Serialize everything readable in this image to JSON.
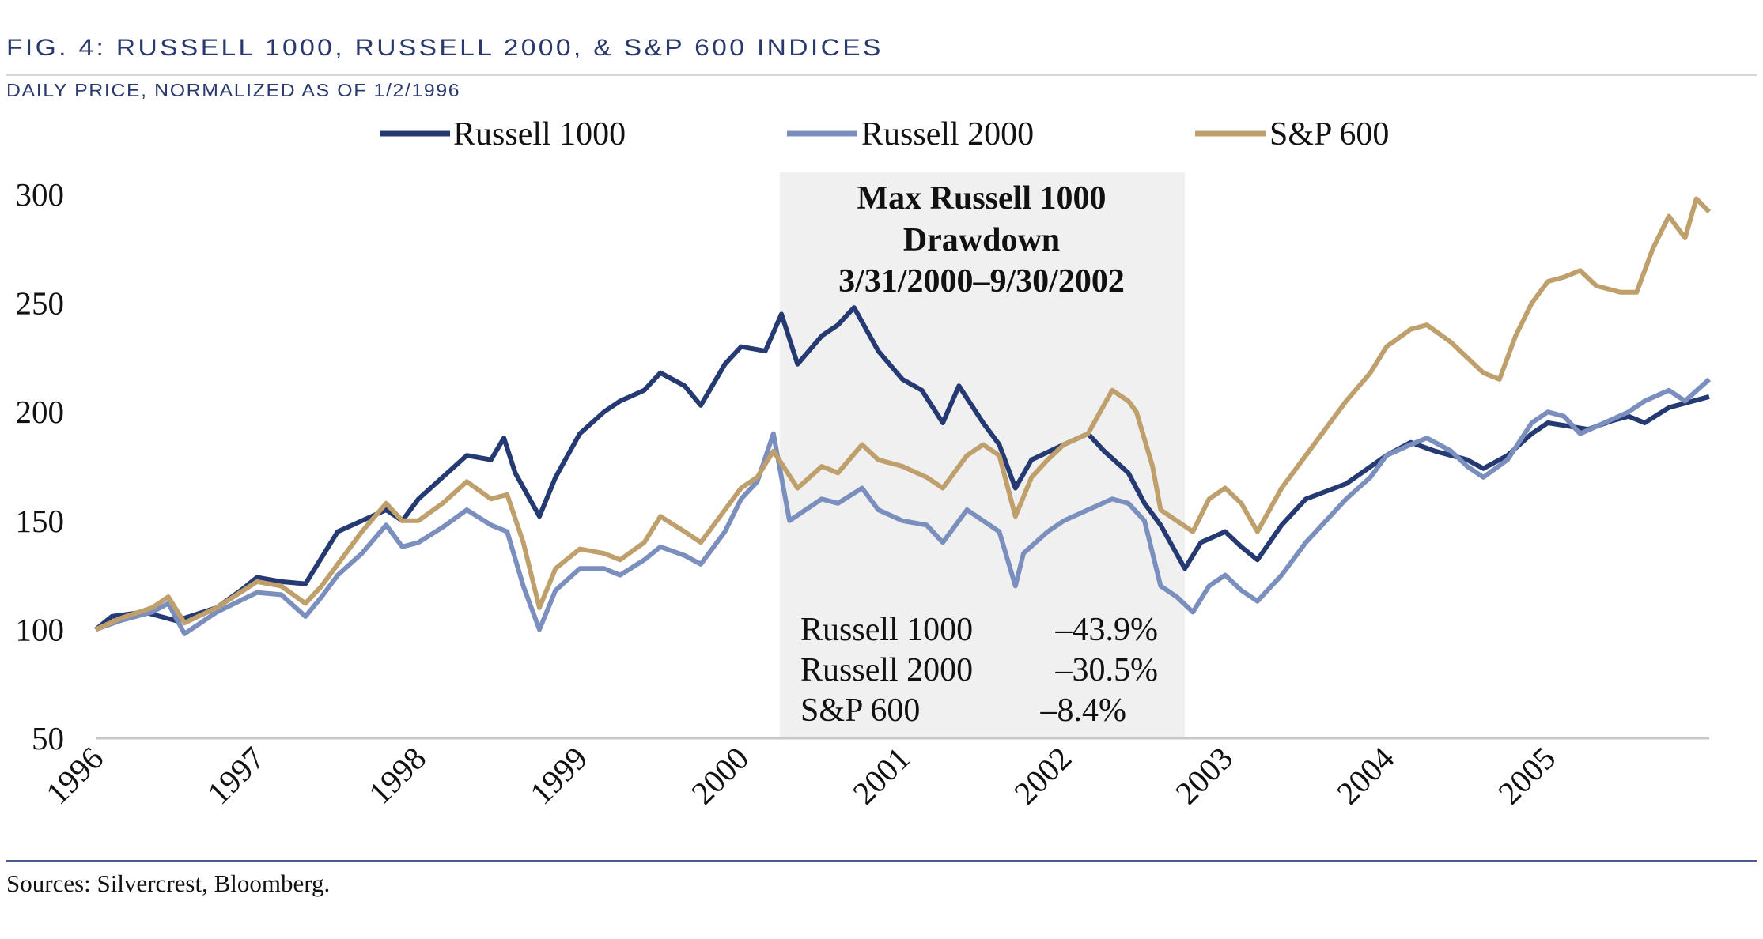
{
  "header": {
    "title": "FIG. 4: RUSSELL 1000, RUSSELL 2000, & S&P 600 INDICES",
    "subtitle": "DAILY PRICE, NORMALIZED AS OF 1/2/1996"
  },
  "footer": {
    "source": "Sources: Silvercrest, Bloomberg."
  },
  "chart_data": {
    "type": "line",
    "title": "FIG. 4: RUSSELL 1000, RUSSELL 2000, & S&P 600 INDICES",
    "subtitle": "DAILY PRICE, NORMALIZED AS OF 1/2/1996",
    "xlim": [
      1996,
      2006
    ],
    "ylim": [
      50,
      300
    ],
    "y_ticks": [
      "300",
      "250",
      "200",
      "150",
      "100",
      "50"
    ],
    "x_ticks": [
      "1996",
      "1997",
      "1998",
      "1999",
      "2000",
      "2001",
      "2002",
      "2003",
      "2004",
      "2005"
    ],
    "grid": false,
    "legend_position": "top",
    "series": [
      {
        "name": "Russell 1000",
        "color": "#253a73",
        "points": [
          [
            1996.0,
            100
          ],
          [
            1996.1,
            106
          ],
          [
            1996.3,
            108
          ],
          [
            1996.5,
            104
          ],
          [
            1996.75,
            110
          ],
          [
            1996.9,
            118
          ],
          [
            1997.0,
            124
          ],
          [
            1997.15,
            122
          ],
          [
            1997.3,
            121
          ],
          [
            1997.4,
            133
          ],
          [
            1997.5,
            145
          ],
          [
            1997.65,
            150
          ],
          [
            1997.8,
            155
          ],
          [
            1997.9,
            150
          ],
          [
            1998.0,
            160
          ],
          [
            1998.15,
            170
          ],
          [
            1998.3,
            180
          ],
          [
            1998.45,
            178
          ],
          [
            1998.53,
            188
          ],
          [
            1998.6,
            172
          ],
          [
            1998.75,
            152
          ],
          [
            1998.85,
            170
          ],
          [
            1999.0,
            190
          ],
          [
            1999.15,
            200
          ],
          [
            1999.25,
            205
          ],
          [
            1999.4,
            210
          ],
          [
            1999.5,
            218
          ],
          [
            1999.65,
            212
          ],
          [
            1999.75,
            203
          ],
          [
            1999.9,
            222
          ],
          [
            2000.0,
            230
          ],
          [
            2000.15,
            228
          ],
          [
            2000.25,
            245
          ],
          [
            2000.35,
            222
          ],
          [
            2000.5,
            235
          ],
          [
            2000.6,
            240
          ],
          [
            2000.7,
            248
          ],
          [
            2000.85,
            228
          ],
          [
            2001.0,
            215
          ],
          [
            2001.12,
            210
          ],
          [
            2001.25,
            195
          ],
          [
            2001.35,
            212
          ],
          [
            2001.5,
            195
          ],
          [
            2001.6,
            185
          ],
          [
            2001.7,
            165
          ],
          [
            2001.8,
            178
          ],
          [
            2002.0,
            185
          ],
          [
            2002.15,
            190
          ],
          [
            2002.25,
            182
          ],
          [
            2002.4,
            172
          ],
          [
            2002.5,
            158
          ],
          [
            2002.6,
            148
          ],
          [
            2002.75,
            128
          ],
          [
            2002.85,
            140
          ],
          [
            2003.0,
            145
          ],
          [
            2003.1,
            138
          ],
          [
            2003.2,
            132
          ],
          [
            2003.35,
            148
          ],
          [
            2003.5,
            160
          ],
          [
            2003.75,
            167
          ],
          [
            2004.0,
            180
          ],
          [
            2004.15,
            186
          ],
          [
            2004.3,
            182
          ],
          [
            2004.5,
            178
          ],
          [
            2004.6,
            174
          ],
          [
            2004.75,
            180
          ],
          [
            2004.9,
            190
          ],
          [
            2005.0,
            195
          ],
          [
            2005.25,
            192
          ],
          [
            2005.4,
            196
          ],
          [
            2005.5,
            198
          ],
          [
            2005.6,
            195
          ],
          [
            2005.75,
            202
          ],
          [
            2005.9,
            205
          ],
          [
            2006.0,
            207
          ]
        ]
      },
      {
        "name": "Russell 2000",
        "color": "#7b8fbf",
        "points": [
          [
            1996.0,
            100
          ],
          [
            1996.15,
            104
          ],
          [
            1996.35,
            108
          ],
          [
            1996.45,
            112
          ],
          [
            1996.55,
            98
          ],
          [
            1996.75,
            108
          ],
          [
            1997.0,
            117
          ],
          [
            1997.15,
            116
          ],
          [
            1997.3,
            106
          ],
          [
            1997.4,
            115
          ],
          [
            1997.5,
            125
          ],
          [
            1997.65,
            135
          ],
          [
            1997.8,
            148
          ],
          [
            1997.9,
            138
          ],
          [
            1998.0,
            140
          ],
          [
            1998.15,
            147
          ],
          [
            1998.3,
            155
          ],
          [
            1998.45,
            148
          ],
          [
            1998.55,
            145
          ],
          [
            1998.65,
            120
          ],
          [
            1998.75,
            100
          ],
          [
            1998.85,
            118
          ],
          [
            1999.0,
            128
          ],
          [
            1999.15,
            128
          ],
          [
            1999.25,
            125
          ],
          [
            1999.4,
            132
          ],
          [
            1999.5,
            138
          ],
          [
            1999.65,
            134
          ],
          [
            1999.75,
            130
          ],
          [
            1999.9,
            145
          ],
          [
            2000.0,
            160
          ],
          [
            2000.1,
            168
          ],
          [
            2000.2,
            190
          ],
          [
            2000.3,
            150
          ],
          [
            2000.4,
            155
          ],
          [
            2000.5,
            160
          ],
          [
            2000.6,
            158
          ],
          [
            2000.75,
            165
          ],
          [
            2000.85,
            155
          ],
          [
            2001.0,
            150
          ],
          [
            2001.15,
            148
          ],
          [
            2001.25,
            140
          ],
          [
            2001.4,
            155
          ],
          [
            2001.5,
            150
          ],
          [
            2001.6,
            145
          ],
          [
            2001.7,
            120
          ],
          [
            2001.75,
            135
          ],
          [
            2001.9,
            145
          ],
          [
            2002.0,
            150
          ],
          [
            2002.15,
            155
          ],
          [
            2002.3,
            160
          ],
          [
            2002.4,
            158
          ],
          [
            2002.5,
            150
          ],
          [
            2002.6,
            120
          ],
          [
            2002.7,
            115
          ],
          [
            2002.8,
            108
          ],
          [
            2002.9,
            120
          ],
          [
            2003.0,
            125
          ],
          [
            2003.1,
            118
          ],
          [
            2003.2,
            113
          ],
          [
            2003.35,
            125
          ],
          [
            2003.5,
            140
          ],
          [
            2003.6,
            148
          ],
          [
            2003.75,
            160
          ],
          [
            2003.9,
            170
          ],
          [
            2004.0,
            180
          ],
          [
            2004.15,
            185
          ],
          [
            2004.25,
            188
          ],
          [
            2004.4,
            182
          ],
          [
            2004.5,
            175
          ],
          [
            2004.6,
            170
          ],
          [
            2004.75,
            178
          ],
          [
            2004.9,
            195
          ],
          [
            2005.0,
            200
          ],
          [
            2005.1,
            198
          ],
          [
            2005.2,
            190
          ],
          [
            2005.35,
            195
          ],
          [
            2005.5,
            200
          ],
          [
            2005.6,
            205
          ],
          [
            2005.75,
            210
          ],
          [
            2005.85,
            205
          ],
          [
            2006.0,
            215
          ]
        ]
      },
      {
        "name": "S&P 600",
        "color": "#bfa06c",
        "points": [
          [
            1996.0,
            100
          ],
          [
            1996.15,
            105
          ],
          [
            1996.35,
            110
          ],
          [
            1996.45,
            115
          ],
          [
            1996.55,
            103
          ],
          [
            1996.75,
            110
          ],
          [
            1997.0,
            122
          ],
          [
            1997.15,
            120
          ],
          [
            1997.3,
            112
          ],
          [
            1997.4,
            120
          ],
          [
            1997.5,
            130
          ],
          [
            1997.65,
            145
          ],
          [
            1997.8,
            158
          ],
          [
            1997.9,
            150
          ],
          [
            1998.0,
            150
          ],
          [
            1998.15,
            158
          ],
          [
            1998.3,
            168
          ],
          [
            1998.45,
            160
          ],
          [
            1998.55,
            162
          ],
          [
            1998.65,
            140
          ],
          [
            1998.75,
            110
          ],
          [
            1998.85,
            128
          ],
          [
            1999.0,
            137
          ],
          [
            1999.15,
            135
          ],
          [
            1999.25,
            132
          ],
          [
            1999.4,
            140
          ],
          [
            1999.5,
            152
          ],
          [
            1999.65,
            145
          ],
          [
            1999.75,
            140
          ],
          [
            1999.9,
            155
          ],
          [
            2000.0,
            165
          ],
          [
            2000.1,
            170
          ],
          [
            2000.2,
            182
          ],
          [
            2000.35,
            165
          ],
          [
            2000.5,
            175
          ],
          [
            2000.6,
            172
          ],
          [
            2000.75,
            185
          ],
          [
            2000.85,
            178
          ],
          [
            2001.0,
            175
          ],
          [
            2001.15,
            170
          ],
          [
            2001.25,
            165
          ],
          [
            2001.4,
            180
          ],
          [
            2001.5,
            185
          ],
          [
            2001.6,
            180
          ],
          [
            2001.7,
            152
          ],
          [
            2001.8,
            170
          ],
          [
            2001.9,
            178
          ],
          [
            2002.0,
            185
          ],
          [
            2002.15,
            190
          ],
          [
            2002.3,
            210
          ],
          [
            2002.4,
            205
          ],
          [
            2002.45,
            200
          ],
          [
            2002.55,
            175
          ],
          [
            2002.6,
            155
          ],
          [
            2002.7,
            150
          ],
          [
            2002.8,
            145
          ],
          [
            2002.9,
            160
          ],
          [
            2003.0,
            165
          ],
          [
            2003.1,
            158
          ],
          [
            2003.2,
            145
          ],
          [
            2003.35,
            165
          ],
          [
            2003.5,
            180
          ],
          [
            2003.6,
            190
          ],
          [
            2003.75,
            205
          ],
          [
            2003.9,
            218
          ],
          [
            2004.0,
            230
          ],
          [
            2004.15,
            238
          ],
          [
            2004.25,
            240
          ],
          [
            2004.4,
            232
          ],
          [
            2004.5,
            225
          ],
          [
            2004.6,
            218
          ],
          [
            2004.7,
            215
          ],
          [
            2004.8,
            235
          ],
          [
            2004.9,
            250
          ],
          [
            2005.0,
            260
          ],
          [
            2005.1,
            262
          ],
          [
            2005.2,
            265
          ],
          [
            2005.3,
            258
          ],
          [
            2005.45,
            255
          ],
          [
            2005.55,
            255
          ],
          [
            2005.65,
            275
          ],
          [
            2005.75,
            290
          ],
          [
            2005.85,
            280
          ],
          [
            2005.92,
            298
          ],
          [
            2006.0,
            292
          ]
        ]
      }
    ],
    "annotation": {
      "shaded_range": [
        "3/31/2000",
        "9/30/2002"
      ],
      "shaded_x": [
        2000.24,
        2002.75
      ],
      "title_lines": [
        "Max Russell 1000",
        "Drawdown",
        "3/31/2000–9/30/2002"
      ],
      "rows": [
        {
          "label": "Russell 1000",
          "value": "–43.9%"
        },
        {
          "label": "Russell 2000",
          "value": "–30.5%"
        },
        {
          "label": "S&P 600",
          "value": "–8.4%"
        }
      ]
    }
  }
}
